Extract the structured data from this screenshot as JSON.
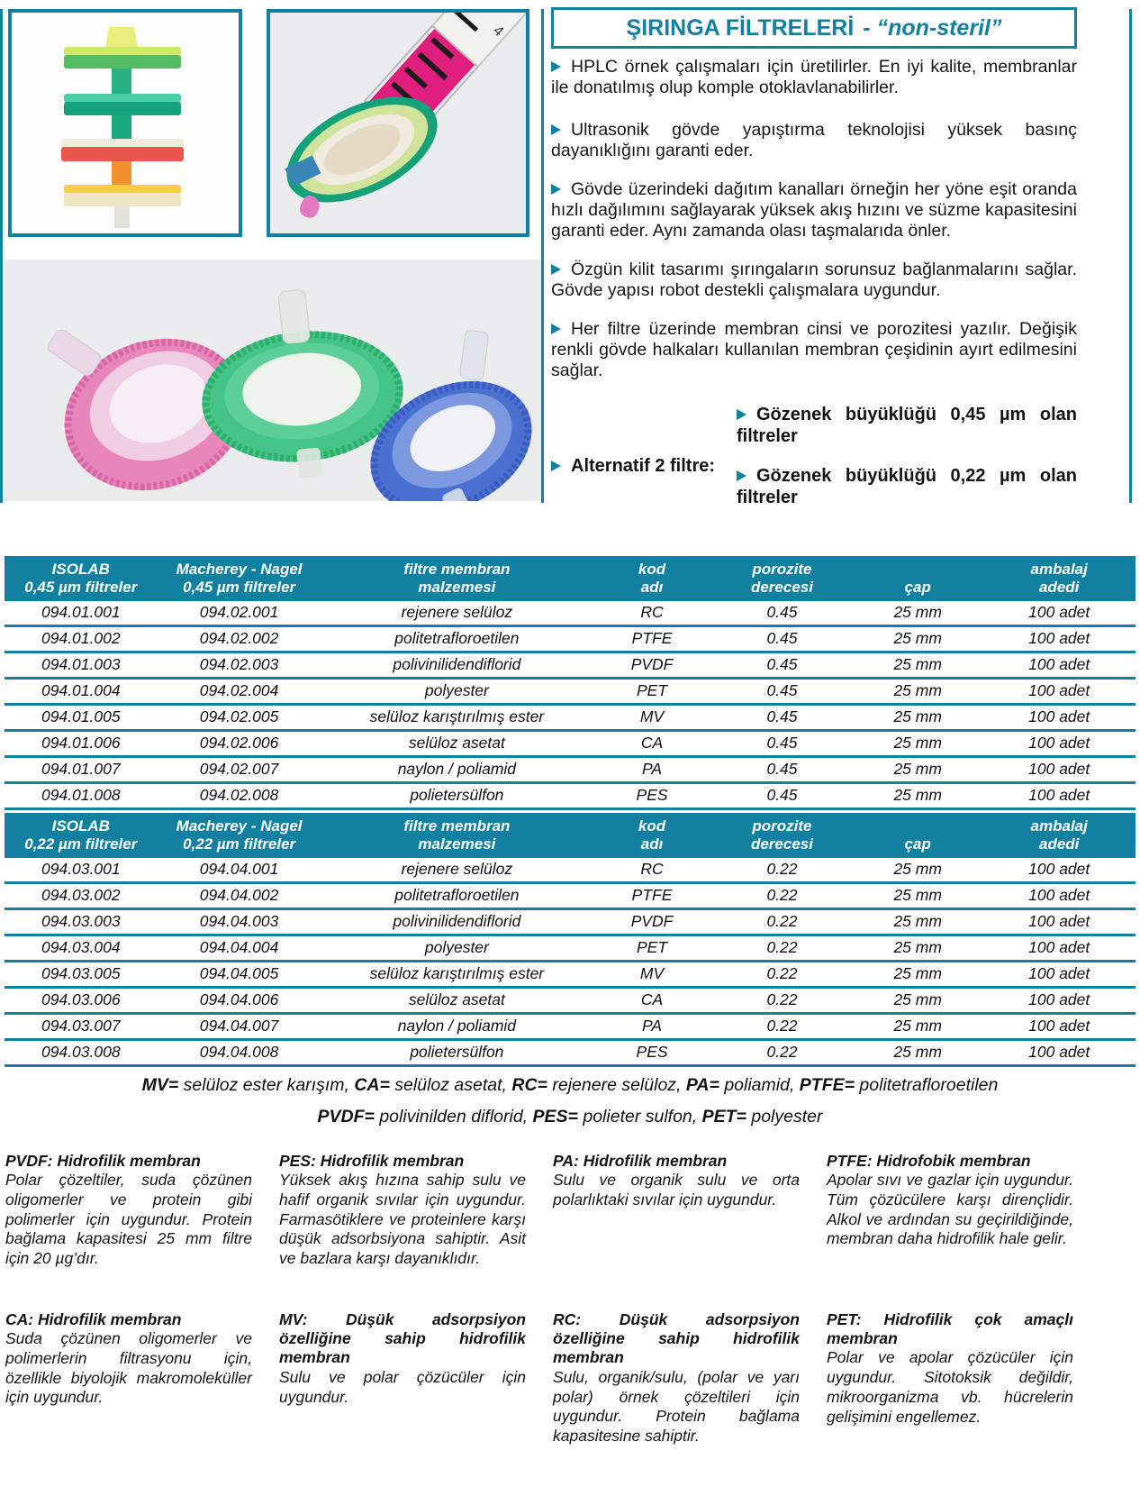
{
  "colors": {
    "accent": "#1180a1",
    "photo_bg": "#e9ebec"
  },
  "header": {
    "title_main": "ŞIRINGA FİLTRELERİ",
    "title_suffix": "- “non-steril”"
  },
  "intro_bullets": [
    "HPLC örnek çalışmaları için üretilirler. En iyi kalite, membranlar ile donatılmış olup komple otoklavlanabilirler.",
    "Ultrasonik gövde yapıştırma teknolojisi yüksek basınç dayanıklığını garanti eder.",
    "Gövde üzerindeki dağıtım kanalları örneğin her yöne eşit oranda hızlı dağılımını sağlayarak yüksek akış hızını ve süzme kapasitesini garanti eder. Aynı zamanda olası taşmalarıda önler.",
    "Özgün kilit tasarımı şırıngaların sorunsuz bağlanmalarını sağlar. Gövde yapısı robot destekli çalışmalara uygundur.",
    "Her filtre üzerinde membran cinsi ve porozitesi yazılır. Değişik renkli gövde halkaları kullanılan membran çeşidinin ayırt edilmesini sağlar."
  ],
  "alternatif": {
    "label": "Alternatif 2 filtre:",
    "options": [
      "Gözenek büyüklüğü 0,45 µm olan filtreler",
      "Gözenek büyüklüğü 0,22 µm olan filtreler"
    ]
  },
  "tables": [
    {
      "headers": [
        [
          "ISOLAB",
          "0,45 µm filtreler"
        ],
        [
          "Macherey - Nagel",
          "0,45 µm filtreler"
        ],
        [
          "filtre membran",
          "malzemesi"
        ],
        [
          "kod",
          "adı"
        ],
        [
          "porozite",
          "derecesi"
        ],
        [
          "",
          "çap"
        ],
        [
          "ambalaj",
          "adedi"
        ]
      ],
      "rows": [
        [
          "094.01.001",
          "094.02.001",
          "rejenere selüloz",
          "RC",
          "0.45",
          "25 mm",
          "100 adet"
        ],
        [
          "094.01.002",
          "094.02.002",
          "politetrafloroetilen",
          "PTFE",
          "0.45",
          "25 mm",
          "100 adet"
        ],
        [
          "094.01.003",
          "094.02.003",
          "polivinilidendiflorid",
          "PVDF",
          "0.45",
          "25 mm",
          "100 adet"
        ],
        [
          "094.01.004",
          "094.02.004",
          "polyester",
          "PET",
          "0.45",
          "25 mm",
          "100 adet"
        ],
        [
          "094.01.005",
          "094.02.005",
          "selüloz karıştırılmış ester",
          "MV",
          "0.45",
          "25 mm",
          "100 adet"
        ],
        [
          "094.01.006",
          "094.02.006",
          "selüloz asetat",
          "CA",
          "0.45",
          "25 mm",
          "100 adet"
        ],
        [
          "094.01.007",
          "094.02.007",
          "naylon / poliamid",
          "PA",
          "0.45",
          "25 mm",
          "100 adet"
        ],
        [
          "094.01.008",
          "094.02.008",
          "polietersülfon",
          "PES",
          "0.45",
          "25 mm",
          "100 adet"
        ]
      ]
    },
    {
      "headers": [
        [
          "ISOLAB",
          "0,22 µm filtreler"
        ],
        [
          "Macherey - Nagel",
          "0,22 µm filtreler"
        ],
        [
          "filtre membran",
          "malzemesi"
        ],
        [
          "kod",
          "adı"
        ],
        [
          "porozite",
          "derecesi"
        ],
        [
          "",
          "çap"
        ],
        [
          "ambalaj",
          "adedi"
        ]
      ],
      "rows": [
        [
          "094.03.001",
          "094.04.001",
          "rejenere selüloz",
          "RC",
          "0.22",
          "25 mm",
          "100 adet"
        ],
        [
          "094.03.002",
          "094.04.002",
          "politetrafloroetilen",
          "PTFE",
          "0.22",
          "25 mm",
          "100 adet"
        ],
        [
          "094.03.003",
          "094.04.003",
          "polivinilidendiflorid",
          "PVDF",
          "0.22",
          "25 mm",
          "100 adet"
        ],
        [
          "094.03.004",
          "094.04.004",
          "polyester",
          "PET",
          "0.22",
          "25 mm",
          "100 adet"
        ],
        [
          "094.03.005",
          "094.04.005",
          "selüloz karıştırılmış ester",
          "MV",
          "0.22",
          "25 mm",
          "100 adet"
        ],
        [
          "094.03.006",
          "094.04.006",
          "selüloz asetat",
          "CA",
          "0.22",
          "25 mm",
          "100 adet"
        ],
        [
          "094.03.007",
          "094.04.007",
          "naylon / poliamid",
          "PA",
          "0.22",
          "25 mm",
          "100 adet"
        ],
        [
          "094.03.008",
          "094.04.008",
          "polietersülfon",
          "PES",
          "0.22",
          "25 mm",
          "100 adet"
        ]
      ]
    }
  ],
  "legend": [
    [
      {
        "k": "MV=",
        "v": " selüloz ester karışım, "
      },
      {
        "k": "CA=",
        "v": " selüloz asetat, "
      },
      {
        "k": "RC=",
        "v": " rejenere selüloz, "
      },
      {
        "k": "PA=",
        "v": " poliamid, "
      },
      {
        "k": "PTFE=",
        "v": " politetrafloroetilen"
      }
    ],
    [
      {
        "k": "PVDF=",
        "v": " polivinilden diflorid, "
      },
      {
        "k": "PES=",
        "v": " polieter sulfon, "
      },
      {
        "k": "PET=",
        "v": " polyester"
      }
    ]
  ],
  "membranes": [
    {
      "title": "PVDF: Hidrofilik membran",
      "body": "Polar çözeltiler, suda çözünen oligomerler ve protein gibi polimerler için uygundur. Protein bağlama kapasitesi 25 mm filtre için 20 µg’dır."
    },
    {
      "title": "PES: Hidrofilik membran",
      "body": "Yüksek akış hızına sahip sulu ve hafif organik sıvılar için uygundur. Farmasötiklere ve proteinlere karşı düşük adsorbsiyona sahiptir. Asit ve bazlara karşı dayanıklıdır."
    },
    {
      "title": "PA: Hidrofilik membran",
      "body": "Sulu ve organik sulu ve orta polarlıktaki sıvılar için uygundur."
    },
    {
      "title": "PTFE: Hidrofobik membran",
      "body": "Apolar sıvı ve gazlar için uygundur. Tüm çözücülere karşı dirençlidir. Alkol ve ardından su geçirildiğinde, membran daha hidrofilik hale gelir."
    },
    {
      "title": "CA: Hidrofilik membran",
      "body": "Suda çözünen oligomerler ve polimerlerin filtrasyonu için, özellikle biyolojik makromoleküller için uygundur."
    },
    {
      "title": "MV: Düşük adsorpsiyon özelliğine sahip hidrofilik membran",
      "body": "Sulu ve polar çözücüler için uygundur."
    },
    {
      "title": "RC: Düşük adsorpsiyon özelliğine sahip hidrofilik membran",
      "body": "Sulu, organik/sulu, (polar ve yarı polar) örnek çözeltileri için uygundur. Protein bağlama kapasitesine sahiptir."
    },
    {
      "title": "PET: Hidrofilik çok amaçlı membran",
      "body": "Polar ve apolar çözücüler için uygundur. Sitotoksik değildir, mikroorganizma vb. hücrelerin gelişimini engellemez."
    }
  ]
}
